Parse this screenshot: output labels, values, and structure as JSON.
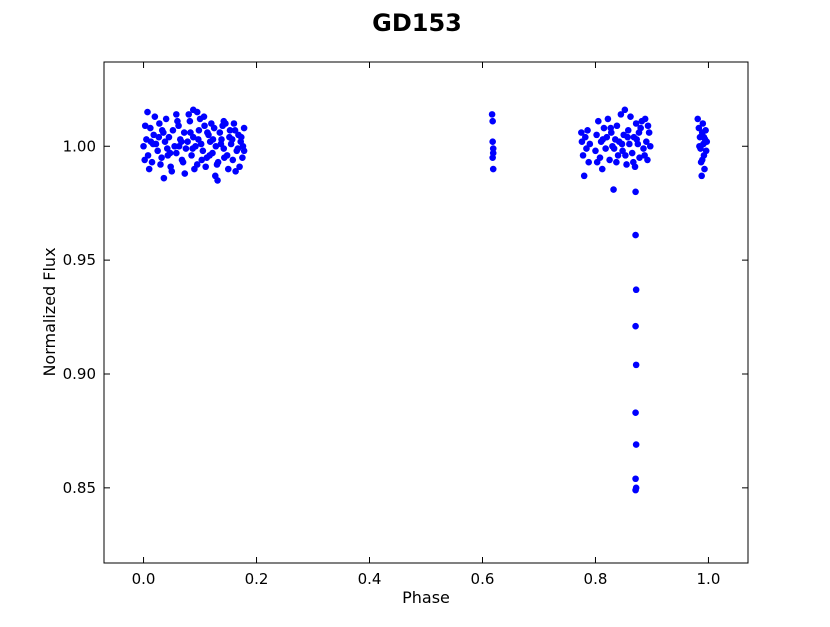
{
  "chart_data": {
    "type": "scatter",
    "title": "GD153",
    "xlabel": "Phase",
    "ylabel": "Normalized Flux",
    "xlim": [
      -0.07,
      1.07
    ],
    "ylim": [
      0.817,
      1.037
    ],
    "xticks": [
      0.0,
      0.2,
      0.4,
      0.6,
      0.8,
      1.0
    ],
    "xtick_labels": [
      "0.0",
      "0.2",
      "0.4",
      "0.6",
      "0.8",
      "1.0"
    ],
    "yticks": [
      0.85,
      0.9,
      0.95,
      1.0
    ],
    "ytick_labels": [
      "0.85",
      "0.90",
      "0.95",
      "1.00"
    ],
    "grid": false,
    "legend": "none",
    "marker_color": "#0000ff",
    "series": [
      {
        "points": [
          [
            0.0,
            1.0
          ],
          [
            0.005,
            1.003
          ],
          [
            0.008,
            0.996
          ],
          [
            0.012,
            1.008
          ],
          [
            0.015,
            0.993
          ],
          [
            0.018,
            1.005
          ],
          [
            0.022,
            1.001
          ],
          [
            0.025,
            0.998
          ],
          [
            0.028,
            1.01
          ],
          [
            0.032,
            0.995
          ],
          [
            0.035,
            1.006
          ],
          [
            0.038,
            1.002
          ],
          [
            0.042,
            0.999
          ],
          [
            0.045,
            1.004
          ],
          [
            0.048,
            0.991
          ],
          [
            0.052,
            1.007
          ],
          [
            0.055,
            1.0
          ],
          [
            0.058,
            0.997
          ],
          [
            0.062,
            1.009
          ],
          [
            0.065,
            1.003
          ],
          [
            0.068,
            0.994
          ],
          [
            0.072,
            1.006
          ],
          [
            0.075,
            0.999
          ],
          [
            0.078,
            1.002
          ],
          [
            0.082,
            1.011
          ],
          [
            0.085,
            0.996
          ],
          [
            0.088,
            1.004
          ],
          [
            0.092,
            1.0
          ],
          [
            0.095,
            0.992
          ],
          [
            0.098,
            1.007
          ],
          [
            0.102,
            1.001
          ],
          [
            0.105,
            0.998
          ],
          [
            0.108,
            1.009
          ],
          [
            0.112,
            0.995
          ],
          [
            0.115,
            1.005
          ],
          [
            0.118,
            1.002
          ],
          [
            0.122,
            0.997
          ],
          [
            0.125,
            1.008
          ],
          [
            0.128,
            1.0
          ],
          [
            0.132,
            0.993
          ],
          [
            0.135,
            1.006
          ],
          [
            0.138,
            1.003
          ],
          [
            0.142,
            0.999
          ],
          [
            0.145,
            1.01
          ],
          [
            0.148,
            0.996
          ],
          [
            0.152,
            1.004
          ],
          [
            0.155,
            1.001
          ],
          [
            0.158,
            0.994
          ],
          [
            0.162,
            1.007
          ],
          [
            0.165,
            0.998
          ],
          [
            0.168,
            1.005
          ],
          [
            0.172,
            1.002
          ],
          [
            0.175,
            0.995
          ],
          [
            0.003,
            1.009
          ],
          [
            0.01,
            0.99
          ],
          [
            0.02,
            1.013
          ],
          [
            0.03,
            0.992
          ],
          [
            0.04,
            1.012
          ],
          [
            0.05,
            0.989
          ],
          [
            0.06,
            1.011
          ],
          [
            0.07,
            0.993
          ],
          [
            0.08,
            1.014
          ],
          [
            0.09,
            0.99
          ],
          [
            0.1,
            1.012
          ],
          [
            0.11,
            0.991
          ],
          [
            0.12,
            1.01
          ],
          [
            0.13,
            0.992
          ],
          [
            0.14,
            1.009
          ],
          [
            0.15,
            0.99
          ],
          [
            0.16,
            1.01
          ],
          [
            0.17,
            0.991
          ],
          [
            0.007,
            1.015
          ],
          [
            0.036,
            0.986
          ],
          [
            0.058,
            1.014
          ],
          [
            0.073,
            0.988
          ],
          [
            0.088,
            1.016
          ],
          [
            0.095,
            1.015
          ],
          [
            0.107,
            1.013
          ],
          [
            0.127,
            0.987
          ],
          [
            0.131,
            0.985
          ],
          [
            0.142,
            1.011
          ],
          [
            0.163,
            0.989
          ],
          [
            0.017,
            1.001
          ],
          [
            0.027,
            1.004
          ],
          [
            0.047,
            0.997
          ],
          [
            0.067,
            1.002
          ],
          [
            0.087,
            0.999
          ],
          [
            0.097,
            1.003
          ],
          [
            0.117,
            0.996
          ],
          [
            0.137,
            1.001
          ],
          [
            0.157,
            1.003
          ],
          [
            0.167,
            0.999
          ],
          [
            0.002,
            0.994
          ],
          [
            0.013,
            1.002
          ],
          [
            0.033,
            1.007
          ],
          [
            0.043,
            0.996
          ],
          [
            0.063,
            1.0
          ],
          [
            0.083,
            1.006
          ],
          [
            0.103,
            0.994
          ],
          [
            0.113,
            1.006
          ],
          [
            0.123,
            1.003
          ],
          [
            0.143,
            0.995
          ],
          [
            0.153,
            1.007
          ],
          [
            0.173,
            1.004
          ],
          [
            0.178,
            0.998
          ],
          [
            0.178,
            1.008
          ],
          [
            0.176,
            1.0
          ],
          [
            0.617,
            1.014
          ],
          [
            0.618,
            1.011
          ],
          [
            0.618,
            1.002
          ],
          [
            0.619,
            0.999
          ],
          [
            0.619,
            0.997
          ],
          [
            0.618,
            0.995
          ],
          [
            0.619,
            0.99
          ],
          [
            0.775,
            1.006
          ],
          [
            0.776,
            1.002
          ],
          [
            0.778,
            0.996
          ],
          [
            0.78,
            0.987
          ],
          [
            0.782,
            1.004
          ],
          [
            0.784,
            0.999
          ],
          [
            0.786,
            1.007
          ],
          [
            0.788,
            0.993
          ],
          [
            0.79,
            1.001
          ],
          [
            0.8,
            0.998
          ],
          [
            0.802,
            1.005
          ],
          [
            0.805,
            1.011
          ],
          [
            0.808,
            0.995
          ],
          [
            0.81,
            1.002
          ],
          [
            0.812,
            0.99
          ],
          [
            0.815,
            1.008
          ],
          [
            0.818,
            0.999
          ],
          [
            0.82,
            1.004
          ],
          [
            0.822,
            1.012
          ],
          [
            0.825,
            0.994
          ],
          [
            0.828,
            1.006
          ],
          [
            0.83,
            1.0
          ],
          [
            0.832,
            0.981
          ],
          [
            0.835,
            1.003
          ],
          [
            0.838,
            1.009
          ],
          [
            0.84,
            0.996
          ],
          [
            0.842,
            1.002
          ],
          [
            0.845,
            1.014
          ],
          [
            0.848,
            0.998
          ],
          [
            0.85,
            1.005
          ],
          [
            0.852,
            1.016
          ],
          [
            0.855,
            0.992
          ],
          [
            0.858,
            1.007
          ],
          [
            0.86,
            1.001
          ],
          [
            0.862,
            1.013
          ],
          [
            0.865,
            0.997
          ],
          [
            0.868,
            1.004
          ],
          [
            0.87,
            0.991
          ],
          [
            0.872,
            1.01
          ],
          [
            0.875,
            1.001
          ],
          [
            0.878,
            0.995
          ],
          [
            0.88,
            1.008
          ],
          [
            0.882,
            1.011
          ],
          [
            0.885,
            0.999
          ],
          [
            0.888,
            1.012
          ],
          [
            0.89,
            1.002
          ],
          [
            0.892,
            0.994
          ],
          [
            0.895,
            1.006
          ],
          [
            0.897,
            1.0
          ],
          [
            0.803,
            0.993
          ],
          [
            0.827,
            1.008
          ],
          [
            0.837,
            0.993
          ],
          [
            0.847,
            1.001
          ],
          [
            0.857,
            1.004
          ],
          [
            0.867,
            0.993
          ],
          [
            0.877,
            1.006
          ],
          [
            0.887,
            0.996
          ],
          [
            0.813,
            1.003
          ],
          [
            0.833,
            0.999
          ],
          [
            0.853,
            0.996
          ],
          [
            0.873,
            1.003
          ],
          [
            0.893,
            1.009
          ],
          [
            0.871,
            0.98
          ],
          [
            0.871,
            0.961
          ],
          [
            0.872,
            0.937
          ],
          [
            0.871,
            0.921
          ],
          [
            0.872,
            0.904
          ],
          [
            0.871,
            0.883
          ],
          [
            0.872,
            0.869
          ],
          [
            0.871,
            0.854
          ],
          [
            0.872,
            0.85
          ],
          [
            0.871,
            0.849
          ],
          [
            0.981,
            1.012
          ],
          [
            0.983,
            1.008
          ],
          [
            0.985,
            1.004
          ],
          [
            0.986,
            0.999
          ],
          [
            0.987,
            0.993
          ],
          [
            0.988,
            0.987
          ],
          [
            0.989,
            1.006
          ],
          [
            0.99,
            1.01
          ],
          [
            0.991,
            1.001
          ],
          [
            0.992,
            0.996
          ],
          [
            0.993,
            0.99
          ],
          [
            0.994,
            1.003
          ],
          [
            0.995,
            1.007
          ],
          [
            0.996,
            0.998
          ],
          [
            0.997,
            1.002
          ],
          [
            0.984,
            1.0
          ],
          [
            0.992,
            1.004
          ],
          [
            0.989,
            0.994
          ]
        ]
      }
    ]
  }
}
